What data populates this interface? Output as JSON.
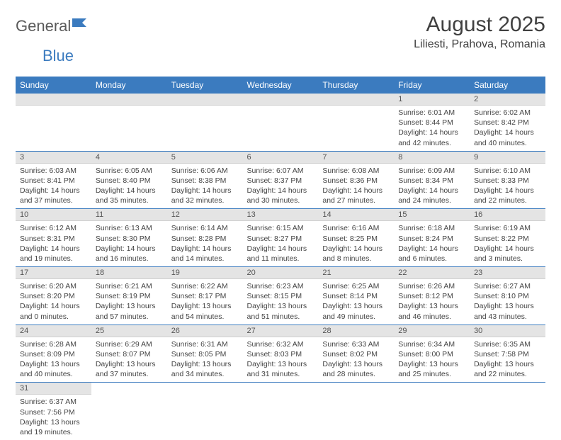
{
  "logo": {
    "part1": "General",
    "part2": "Blue"
  },
  "title": "August 2025",
  "location": "Liliesti, Prahova, Romania",
  "colors": {
    "header_bg": "#3b7bbf",
    "header_text": "#ffffff",
    "daynum_bg": "#e4e4e4",
    "row_border": "#3b7bbf",
    "text": "#444444",
    "title_text": "#404040"
  },
  "columns": [
    "Sunday",
    "Monday",
    "Tuesday",
    "Wednesday",
    "Thursday",
    "Friday",
    "Saturday"
  ],
  "weeks": [
    [
      {
        "day": "",
        "lines": []
      },
      {
        "day": "",
        "lines": []
      },
      {
        "day": "",
        "lines": []
      },
      {
        "day": "",
        "lines": []
      },
      {
        "day": "",
        "lines": []
      },
      {
        "day": "1",
        "lines": [
          "Sunrise: 6:01 AM",
          "Sunset: 8:44 PM",
          "Daylight: 14 hours and 42 minutes."
        ]
      },
      {
        "day": "2",
        "lines": [
          "Sunrise: 6:02 AM",
          "Sunset: 8:42 PM",
          "Daylight: 14 hours and 40 minutes."
        ]
      }
    ],
    [
      {
        "day": "3",
        "lines": [
          "Sunrise: 6:03 AM",
          "Sunset: 8:41 PM",
          "Daylight: 14 hours and 37 minutes."
        ]
      },
      {
        "day": "4",
        "lines": [
          "Sunrise: 6:05 AM",
          "Sunset: 8:40 PM",
          "Daylight: 14 hours and 35 minutes."
        ]
      },
      {
        "day": "5",
        "lines": [
          "Sunrise: 6:06 AM",
          "Sunset: 8:38 PM",
          "Daylight: 14 hours and 32 minutes."
        ]
      },
      {
        "day": "6",
        "lines": [
          "Sunrise: 6:07 AM",
          "Sunset: 8:37 PM",
          "Daylight: 14 hours and 30 minutes."
        ]
      },
      {
        "day": "7",
        "lines": [
          "Sunrise: 6:08 AM",
          "Sunset: 8:36 PM",
          "Daylight: 14 hours and 27 minutes."
        ]
      },
      {
        "day": "8",
        "lines": [
          "Sunrise: 6:09 AM",
          "Sunset: 8:34 PM",
          "Daylight: 14 hours and 24 minutes."
        ]
      },
      {
        "day": "9",
        "lines": [
          "Sunrise: 6:10 AM",
          "Sunset: 8:33 PM",
          "Daylight: 14 hours and 22 minutes."
        ]
      }
    ],
    [
      {
        "day": "10",
        "lines": [
          "Sunrise: 6:12 AM",
          "Sunset: 8:31 PM",
          "Daylight: 14 hours and 19 minutes."
        ]
      },
      {
        "day": "11",
        "lines": [
          "Sunrise: 6:13 AM",
          "Sunset: 8:30 PM",
          "Daylight: 14 hours and 16 minutes."
        ]
      },
      {
        "day": "12",
        "lines": [
          "Sunrise: 6:14 AM",
          "Sunset: 8:28 PM",
          "Daylight: 14 hours and 14 minutes."
        ]
      },
      {
        "day": "13",
        "lines": [
          "Sunrise: 6:15 AM",
          "Sunset: 8:27 PM",
          "Daylight: 14 hours and 11 minutes."
        ]
      },
      {
        "day": "14",
        "lines": [
          "Sunrise: 6:16 AM",
          "Sunset: 8:25 PM",
          "Daylight: 14 hours and 8 minutes."
        ]
      },
      {
        "day": "15",
        "lines": [
          "Sunrise: 6:18 AM",
          "Sunset: 8:24 PM",
          "Daylight: 14 hours and 6 minutes."
        ]
      },
      {
        "day": "16",
        "lines": [
          "Sunrise: 6:19 AM",
          "Sunset: 8:22 PM",
          "Daylight: 14 hours and 3 minutes."
        ]
      }
    ],
    [
      {
        "day": "17",
        "lines": [
          "Sunrise: 6:20 AM",
          "Sunset: 8:20 PM",
          "Daylight: 14 hours and 0 minutes."
        ]
      },
      {
        "day": "18",
        "lines": [
          "Sunrise: 6:21 AM",
          "Sunset: 8:19 PM",
          "Daylight: 13 hours and 57 minutes."
        ]
      },
      {
        "day": "19",
        "lines": [
          "Sunrise: 6:22 AM",
          "Sunset: 8:17 PM",
          "Daylight: 13 hours and 54 minutes."
        ]
      },
      {
        "day": "20",
        "lines": [
          "Sunrise: 6:23 AM",
          "Sunset: 8:15 PM",
          "Daylight: 13 hours and 51 minutes."
        ]
      },
      {
        "day": "21",
        "lines": [
          "Sunrise: 6:25 AM",
          "Sunset: 8:14 PM",
          "Daylight: 13 hours and 49 minutes."
        ]
      },
      {
        "day": "22",
        "lines": [
          "Sunrise: 6:26 AM",
          "Sunset: 8:12 PM",
          "Daylight: 13 hours and 46 minutes."
        ]
      },
      {
        "day": "23",
        "lines": [
          "Sunrise: 6:27 AM",
          "Sunset: 8:10 PM",
          "Daylight: 13 hours and 43 minutes."
        ]
      }
    ],
    [
      {
        "day": "24",
        "lines": [
          "Sunrise: 6:28 AM",
          "Sunset: 8:09 PM",
          "Daylight: 13 hours and 40 minutes."
        ]
      },
      {
        "day": "25",
        "lines": [
          "Sunrise: 6:29 AM",
          "Sunset: 8:07 PM",
          "Daylight: 13 hours and 37 minutes."
        ]
      },
      {
        "day": "26",
        "lines": [
          "Sunrise: 6:31 AM",
          "Sunset: 8:05 PM",
          "Daylight: 13 hours and 34 minutes."
        ]
      },
      {
        "day": "27",
        "lines": [
          "Sunrise: 6:32 AM",
          "Sunset: 8:03 PM",
          "Daylight: 13 hours and 31 minutes."
        ]
      },
      {
        "day": "28",
        "lines": [
          "Sunrise: 6:33 AM",
          "Sunset: 8:02 PM",
          "Daylight: 13 hours and 28 minutes."
        ]
      },
      {
        "day": "29",
        "lines": [
          "Sunrise: 6:34 AM",
          "Sunset: 8:00 PM",
          "Daylight: 13 hours and 25 minutes."
        ]
      },
      {
        "day": "30",
        "lines": [
          "Sunrise: 6:35 AM",
          "Sunset: 7:58 PM",
          "Daylight: 13 hours and 22 minutes."
        ]
      }
    ],
    [
      {
        "day": "31",
        "lines": [
          "Sunrise: 6:37 AM",
          "Sunset: 7:56 PM",
          "Daylight: 13 hours and 19 minutes."
        ]
      },
      {
        "day": "",
        "lines": []
      },
      {
        "day": "",
        "lines": []
      },
      {
        "day": "",
        "lines": []
      },
      {
        "day": "",
        "lines": []
      },
      {
        "day": "",
        "lines": []
      },
      {
        "day": "",
        "lines": []
      }
    ]
  ]
}
